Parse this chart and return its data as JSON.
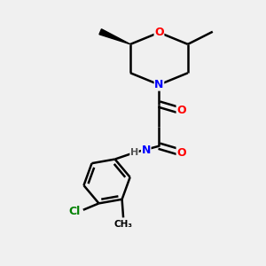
{
  "bg_color": "#f0f0f0",
  "bond_color": "#000000",
  "bond_width": 1.8,
  "atom_colors": {
    "O": "#ff0000",
    "N": "#0000ff",
    "Cl": "#008000",
    "C": "#000000",
    "H": "#555555"
  }
}
